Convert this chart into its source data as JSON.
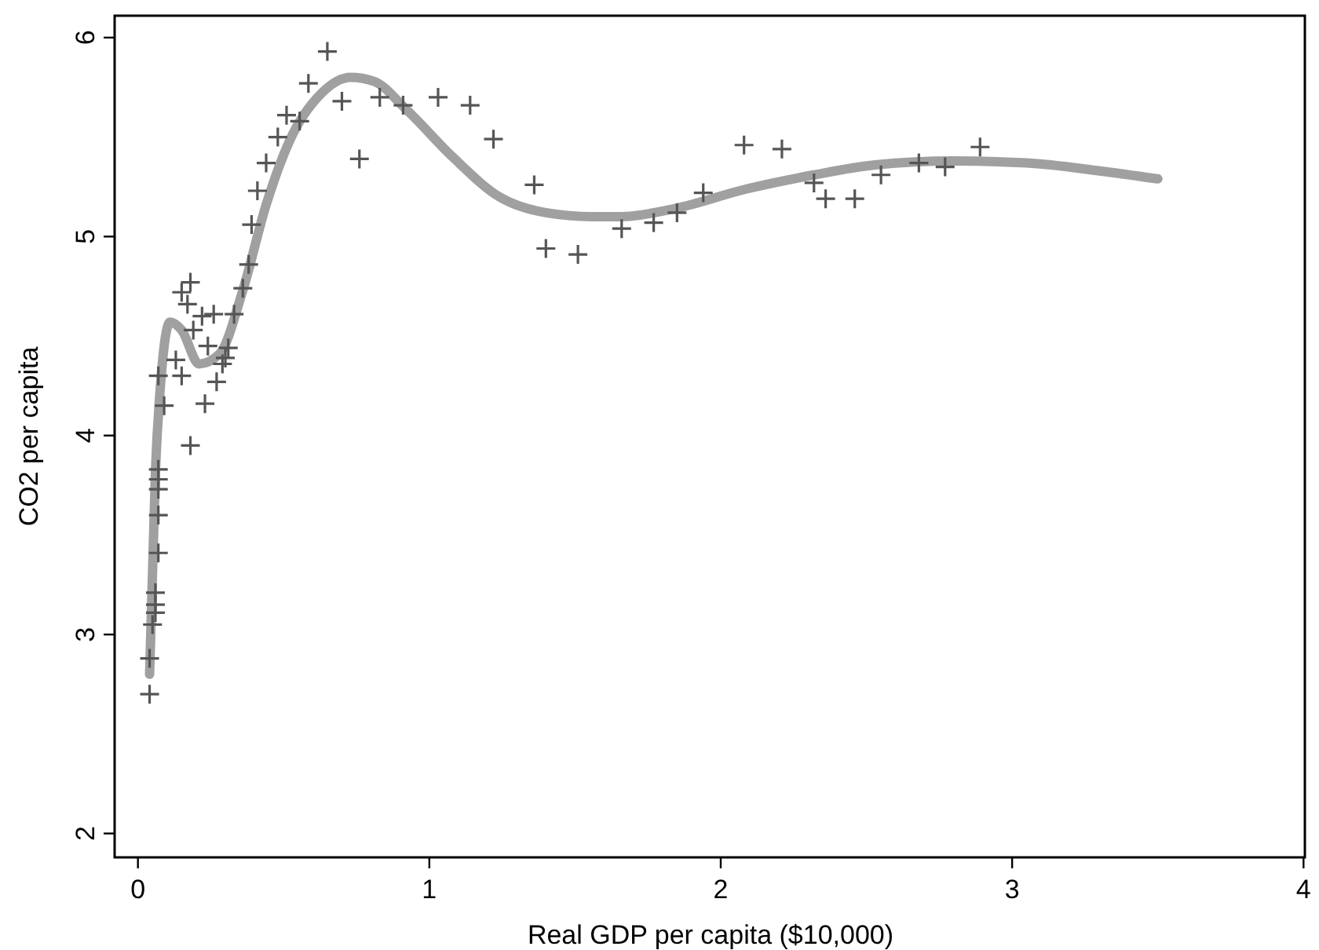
{
  "chart_data": {
    "type": "scatter",
    "xlabel": "Real GDP per capita ($10,000)",
    "ylabel": "CO2 per capita",
    "xlim": [
      -0.08,
      4.01
    ],
    "ylim": [
      1.88,
      6.11
    ],
    "xticks": [
      0,
      1,
      2,
      3,
      4
    ],
    "yticks": [
      2,
      3,
      4,
      5,
      6
    ],
    "grid": false,
    "series": [
      {
        "color": "#555555",
        "marker": "cross",
        "x": [
          0.04,
          0.04,
          0.05,
          0.06,
          0.06,
          0.06,
          0.07,
          0.07,
          0.07,
          0.07,
          0.07,
          0.09,
          0.07,
          0.13,
          0.15,
          0.18,
          0.23,
          0.27,
          0.29,
          0.3,
          0.31,
          0.24,
          0.19,
          0.22,
          0.26,
          0.33,
          0.17,
          0.15,
          0.18,
          0.36,
          0.38,
          0.39,
          0.41,
          0.44,
          0.48,
          0.51,
          0.555,
          0.585,
          0.65,
          0.7,
          0.76,
          0.83,
          0.91,
          1.03,
          1.14,
          1.22,
          1.36,
          1.4,
          1.51,
          1.66,
          1.77,
          1.85,
          1.94,
          2.08,
          2.21,
          2.32,
          2.36,
          2.46,
          2.55,
          2.68,
          2.77,
          2.89
        ],
        "values": [
          2.7,
          2.88,
          3.05,
          3.11,
          3.15,
          3.21,
          3.41,
          3.6,
          3.73,
          3.78,
          3.83,
          4.15,
          4.3,
          4.38,
          4.3,
          3.95,
          4.16,
          4.27,
          4.36,
          4.39,
          4.44,
          4.45,
          4.53,
          4.6,
          4.61,
          4.61,
          4.66,
          4.72,
          4.77,
          4.74,
          4.86,
          5.06,
          5.23,
          5.37,
          5.5,
          5.61,
          5.58,
          5.77,
          5.93,
          5.68,
          5.39,
          5.7,
          5.66,
          5.7,
          5.66,
          5.49,
          5.26,
          4.94,
          4.91,
          5.04,
          5.07,
          5.12,
          5.22,
          5.46,
          5.44,
          5.27,
          5.19,
          5.19,
          5.31,
          5.37,
          5.35,
          5.45
        ]
      },
      {
        "type": "line",
        "color": "#a0a0a0",
        "line_style": "solid",
        "x": [
          0.04,
          0.06,
          0.08,
          0.11,
          0.15,
          0.21,
          0.28,
          0.36,
          0.44,
          0.52,
          0.63,
          0.73,
          0.81,
          0.92,
          1.08,
          1.24,
          1.4,
          1.56,
          1.66,
          1.84,
          2.09,
          2.32,
          2.53,
          2.8,
          3.05,
          3.3,
          3.5
        ],
        "values": [
          2.8,
          3.82,
          4.3,
          4.57,
          4.53,
          4.36,
          4.41,
          4.73,
          5.16,
          5.48,
          5.72,
          5.8,
          5.78,
          5.64,
          5.4,
          5.2,
          5.12,
          5.1,
          5.1,
          5.14,
          5.24,
          5.31,
          5.36,
          5.38,
          5.37,
          5.33,
          5.29
        ]
      }
    ]
  }
}
